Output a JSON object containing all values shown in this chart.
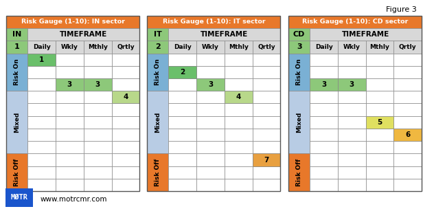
{
  "figure_label_text": "Figure 3",
  "tables": [
    {
      "title": "Risk Gauge (1-10): IN sector",
      "sector_label": "IN",
      "score_label": "1",
      "timeframes": [
        "Daily",
        "Wkly",
        "Mthly",
        "Qrtly"
      ],
      "cells": [
        {
          "row": 0,
          "col": 0,
          "value": "1",
          "color": "#6abf6a"
        },
        {
          "row": 2,
          "col": 1,
          "value": "3",
          "color": "#8dc87a"
        },
        {
          "row": 2,
          "col": 2,
          "value": "3",
          "color": "#8dc87a"
        },
        {
          "row": 3,
          "col": 3,
          "value": "4",
          "color": "#b8d88a"
        }
      ]
    },
    {
      "title": "Risk Gauge (1-10): IT sector",
      "sector_label": "IT",
      "score_label": "2",
      "timeframes": [
        "Daily",
        "Wkly",
        "Mthly",
        "Qrtly"
      ],
      "cells": [
        {
          "row": 1,
          "col": 0,
          "value": "2",
          "color": "#6abf6a"
        },
        {
          "row": 2,
          "col": 1,
          "value": "3",
          "color": "#8dc87a"
        },
        {
          "row": 3,
          "col": 2,
          "value": "4",
          "color": "#b8d88a"
        },
        {
          "row": 8,
          "col": 3,
          "value": "7",
          "color": "#e8a040"
        }
      ]
    },
    {
      "title": "Risk Gauge (1-10): CD sector",
      "sector_label": "CD",
      "score_label": "3",
      "timeframes": [
        "Daily",
        "Wkly",
        "Mthly",
        "Qrtly"
      ],
      "cells": [
        {
          "row": 2,
          "col": 0,
          "value": "3",
          "color": "#8dc87a"
        },
        {
          "row": 2,
          "col": 1,
          "value": "3",
          "color": "#8dc87a"
        },
        {
          "row": 5,
          "col": 2,
          "value": "5",
          "color": "#e0e060"
        },
        {
          "row": 6,
          "col": 3,
          "value": "6",
          "color": "#f0b840"
        }
      ]
    }
  ],
  "title_bg": "#e8782a",
  "title_fg": "white",
  "header_bg": "#d8d8d8",
  "sector_bg": "#8dc87a",
  "score_bg": "#8dc87a",
  "risk_on_bg": "#7ab0d4",
  "mixed_bg": "#b8cce4",
  "risk_off_bg": "#e8782a",
  "cell_bg": "white",
  "grid_color": "#888888",
  "logo_text": "MØTR",
  "website_text": "www.motrcmr.com",
  "logo_bg": "#1a55cc",
  "logo_fg": "white",
  "risk_on_rows": 3,
  "mixed_rows": 5,
  "risk_off_rows": 3
}
